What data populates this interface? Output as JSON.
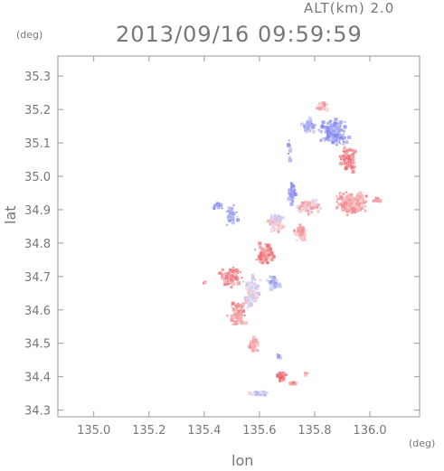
{
  "header": {
    "alt_label": "ALT(km) 2.0",
    "datetime": "2013/09/16 09:59:59",
    "y_unit": "(deg)",
    "x_unit": "(deg)"
  },
  "chart_data": {
    "type": "scatter",
    "xlabel": "lon",
    "ylabel": "lat",
    "xlim": [
      134.87,
      136.18
    ],
    "ylim": [
      34.28,
      35.36
    ],
    "x_ticks": [
      135.0,
      135.2,
      135.4,
      135.6,
      135.8,
      136.0
    ],
    "x_tick_labels": [
      "135.0",
      "135.2",
      "135.4",
      "135.6",
      "135.8",
      "136.0"
    ],
    "y_ticks": [
      34.3,
      34.4,
      34.5,
      34.6,
      34.7,
      34.8,
      34.9,
      35.0,
      35.1,
      35.2,
      35.3
    ],
    "y_tick_labels": [
      "34.3",
      "34.4",
      "34.5",
      "34.6",
      "34.7",
      "34.8",
      "34.9",
      "35.0",
      "35.1",
      "35.2",
      "35.3"
    ],
    "grid": false,
    "colors": {
      "positive": "#e8474f",
      "negative": "#5a5ee8",
      "axis": "#777777"
    },
    "clusters": [
      {
        "lon": 135.87,
        "lat": 35.13,
        "spread": [
          0.06,
          0.05
        ],
        "value": -0.5,
        "n": 140
      },
      {
        "lon": 135.78,
        "lat": 35.15,
        "spread": [
          0.03,
          0.03
        ],
        "value": -0.4,
        "n": 50
      },
      {
        "lon": 135.83,
        "lat": 35.21,
        "spread": [
          0.03,
          0.02
        ],
        "value": 0.3,
        "n": 25
      },
      {
        "lon": 135.92,
        "lat": 35.05,
        "spread": [
          0.04,
          0.05
        ],
        "value": 0.6,
        "n": 70
      },
      {
        "lon": 135.93,
        "lat": 34.92,
        "spread": [
          0.08,
          0.04
        ],
        "value": 0.35,
        "n": 170
      },
      {
        "lon": 135.78,
        "lat": 34.91,
        "spread": [
          0.05,
          0.03
        ],
        "value": 0.25,
        "n": 70
      },
      {
        "lon": 135.72,
        "lat": 34.95,
        "spread": [
          0.02,
          0.04
        ],
        "value": -0.5,
        "n": 35
      },
      {
        "lon": 135.66,
        "lat": 34.86,
        "spread": [
          0.04,
          0.04
        ],
        "value": 0.1,
        "n": 70
      },
      {
        "lon": 135.62,
        "lat": 34.77,
        "spread": [
          0.04,
          0.04
        ],
        "value": 0.6,
        "n": 80
      },
      {
        "lon": 135.75,
        "lat": 34.83,
        "spread": [
          0.03,
          0.03
        ],
        "value": 0.3,
        "n": 45
      },
      {
        "lon": 135.5,
        "lat": 34.88,
        "spread": [
          0.03,
          0.04
        ],
        "value": -0.4,
        "n": 45
      },
      {
        "lon": 135.45,
        "lat": 34.91,
        "spread": [
          0.03,
          0.01
        ],
        "value": -0.6,
        "n": 14
      },
      {
        "lon": 135.5,
        "lat": 34.7,
        "spread": [
          0.05,
          0.04
        ],
        "value": 0.5,
        "n": 90
      },
      {
        "lon": 135.57,
        "lat": 34.65,
        "spread": [
          0.04,
          0.06
        ],
        "value": 0.0,
        "n": 110
      },
      {
        "lon": 135.52,
        "lat": 34.59,
        "spread": [
          0.04,
          0.05
        ],
        "value": 0.4,
        "n": 80
      },
      {
        "lon": 135.65,
        "lat": 34.68,
        "spread": [
          0.03,
          0.03
        ],
        "value": -0.3,
        "n": 40
      },
      {
        "lon": 135.58,
        "lat": 34.5,
        "spread": [
          0.02,
          0.03
        ],
        "value": 0.4,
        "n": 30
      },
      {
        "lon": 135.68,
        "lat": 34.4,
        "spread": [
          0.02,
          0.02
        ],
        "value": 0.7,
        "n": 30
      },
      {
        "lon": 135.72,
        "lat": 34.38,
        "spread": [
          0.02,
          0.01
        ],
        "value": 0.6,
        "n": 14
      },
      {
        "lon": 135.6,
        "lat": 34.35,
        "spread": [
          0.06,
          0.01
        ],
        "value": -0.2,
        "n": 22
      },
      {
        "lon": 135.67,
        "lat": 34.46,
        "spread": [
          0.01,
          0.01
        ],
        "value": -0.5,
        "n": 6
      },
      {
        "lon": 135.77,
        "lat": 34.41,
        "spread": [
          0.02,
          0.01
        ],
        "value": 0.4,
        "n": 5
      },
      {
        "lon": 136.03,
        "lat": 34.93,
        "spread": [
          0.03,
          0.01
        ],
        "value": 0.6,
        "n": 10
      },
      {
        "lon": 135.71,
        "lat": 35.08,
        "spread": [
          0.01,
          0.05
        ],
        "value": -0.4,
        "n": 12
      },
      {
        "lon": 135.4,
        "lat": 34.68,
        "spread": [
          0.01,
          0.01
        ],
        "value": 0.6,
        "n": 4
      }
    ]
  }
}
